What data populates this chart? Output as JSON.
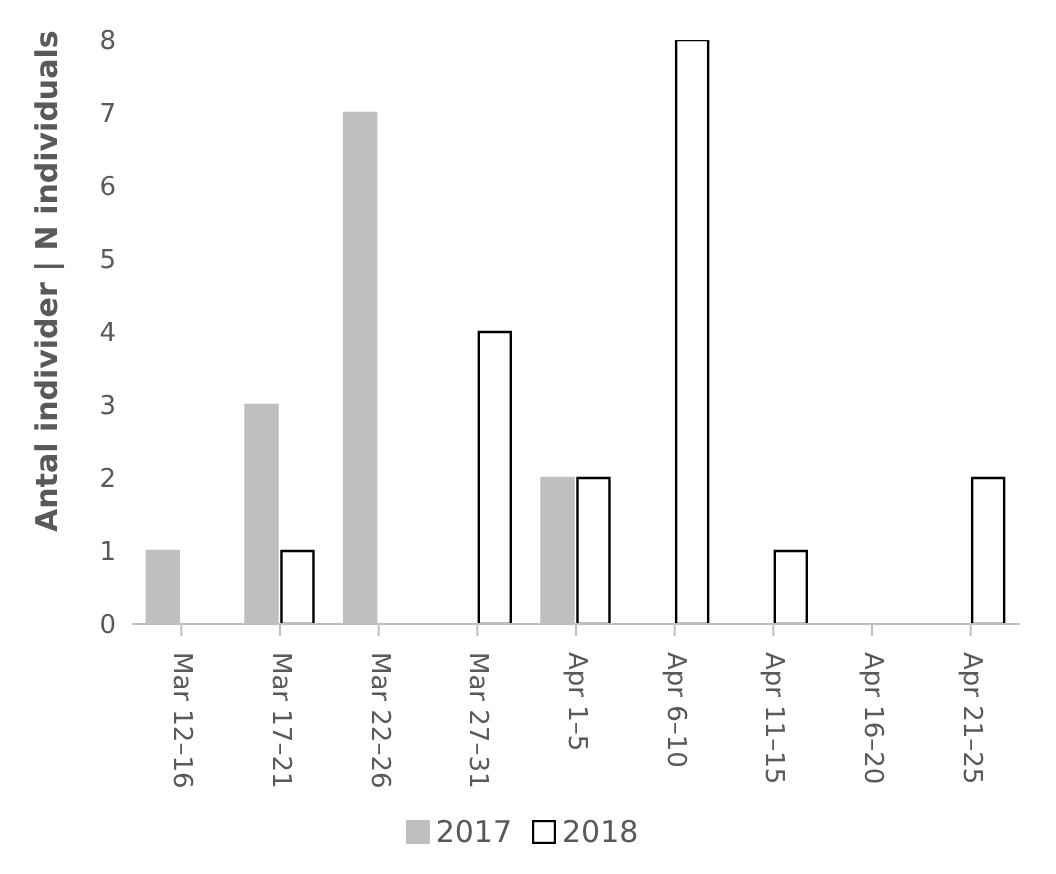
{
  "chart_data": {
    "type": "bar",
    "ylabel": "Antal individer | N individuals",
    "categories": [
      "Mar 12–16",
      "Mar 17–21",
      "Mar 22–26",
      "Mar 27–31",
      "Apr 1–5",
      "Apr 6–10",
      "Apr 11–15",
      "Apr 16–20",
      "Apr 21–25"
    ],
    "series": [
      {
        "name": "2017",
        "color": "#bfbfbf",
        "values": [
          1,
          3,
          7,
          0,
          2,
          0,
          0,
          0,
          0
        ]
      },
      {
        "name": "2018",
        "color": "#ffffff",
        "values": [
          0,
          1,
          0,
          4,
          2,
          8,
          1,
          0,
          2
        ]
      }
    ],
    "ylim": [
      0,
      8
    ],
    "yticks": [
      0,
      1,
      2,
      3,
      4,
      5,
      6,
      7,
      8
    ],
    "legend": "bottom"
  }
}
